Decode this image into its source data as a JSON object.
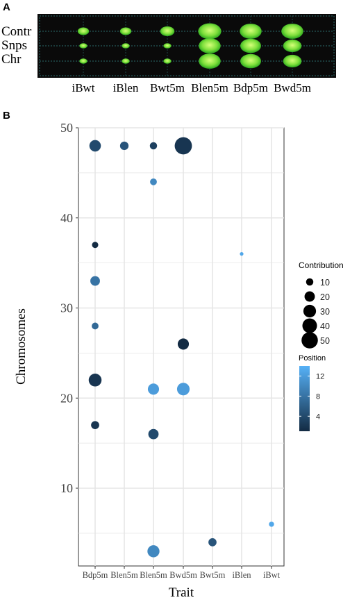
{
  "panel_a": {
    "label": "A",
    "rows": [
      "Contr",
      "Snps",
      "Chr"
    ],
    "columns": [
      "iBwt",
      "iBlen",
      "Bwt5m",
      "Blen5m",
      "Bdp5m",
      "Bwd5m"
    ],
    "colors": {
      "background": "#0a0a0a",
      "dot_center": "#c8f76a",
      "dot_edge": "#3bbf2a",
      "grid": "#2a5a5a"
    }
  },
  "panel_b": {
    "label": "B"
  },
  "chart_data": [
    {
      "type": "heatmap",
      "rows": [
        "Contr",
        "Snps",
        "Chr"
      ],
      "columns": [
        "iBwt",
        "iBlen",
        "Bwt5m",
        "Blen5m",
        "Bdp5m",
        "Bwd5m"
      ],
      "values": [
        [
          1,
          1,
          1.5,
          3,
          2.8,
          2.8
        ],
        [
          0.4,
          0.4,
          0.4,
          2.8,
          2.6,
          2.2
        ],
        [
          0.4,
          0.4,
          0.4,
          2.8,
          2.6,
          2.2
        ]
      ]
    },
    {
      "type": "scatter",
      "categories": [
        "Bdp5m",
        "Blen5m",
        "Blen5m",
        "Bwd5m",
        "Bwt5m",
        "iBlen",
        "iBwt"
      ],
      "x_categories": [
        "Bdp5m",
        "Blen5m",
        "Blen5m",
        "Bwd5m",
        "Bwt5m",
        "iBlen",
        "iBwt"
      ],
      "xlabel": "Trait",
      "ylabel": "Chromosomes",
      "ylim": [
        1,
        50
      ],
      "yticks": [
        10,
        20,
        30,
        40,
        50
      ],
      "grid": true,
      "points": [
        {
          "x": 0,
          "y": 48,
          "contribution": 20,
          "position": 4
        },
        {
          "x": 0,
          "y": 37,
          "contribution": 6,
          "position": 1
        },
        {
          "x": 0,
          "y": 33,
          "contribution": 14,
          "position": 8
        },
        {
          "x": 0,
          "y": 28,
          "contribution": 7,
          "position": 7
        },
        {
          "x": 0,
          "y": 22,
          "contribution": 25,
          "position": 2
        },
        {
          "x": 0,
          "y": 17,
          "contribution": 10,
          "position": 2
        },
        {
          "x": 1,
          "y": 48,
          "contribution": 11,
          "position": 5
        },
        {
          "x": 2,
          "y": 48,
          "contribution": 8,
          "position": 3
        },
        {
          "x": 2,
          "y": 44,
          "contribution": 7,
          "position": 10
        },
        {
          "x": 2,
          "y": 21,
          "contribution": 19,
          "position": 12
        },
        {
          "x": 2,
          "y": 16,
          "contribution": 16,
          "position": 4
        },
        {
          "x": 2,
          "y": 3,
          "contribution": 22,
          "position": 10
        },
        {
          "x": 3,
          "y": 48,
          "contribution": 45,
          "position": 2
        },
        {
          "x": 3,
          "y": 26,
          "contribution": 19,
          "position": 1
        },
        {
          "x": 3,
          "y": 21,
          "contribution": 24,
          "position": 12
        },
        {
          "x": 4,
          "y": 4,
          "contribution": 10,
          "position": 5
        },
        {
          "x": 5,
          "y": 36,
          "contribution": 2,
          "position": 13
        },
        {
          "x": 6,
          "y": 6,
          "contribution": 4,
          "position": 13
        }
      ],
      "legend_size": {
        "title": "Contribution",
        "values": [
          10,
          20,
          30,
          40,
          50
        ],
        "labels": [
          "10",
          "20",
          "30",
          "40",
          "50"
        ]
      },
      "legend_color": {
        "title": "Position",
        "min": 1,
        "max": 14,
        "ticks": [
          4,
          8,
          12
        ],
        "labels": [
          "4",
          "8",
          "12"
        ],
        "low_color": "#132b43",
        "high_color": "#56b1f7"
      },
      "legend_placement": "right"
    }
  ]
}
